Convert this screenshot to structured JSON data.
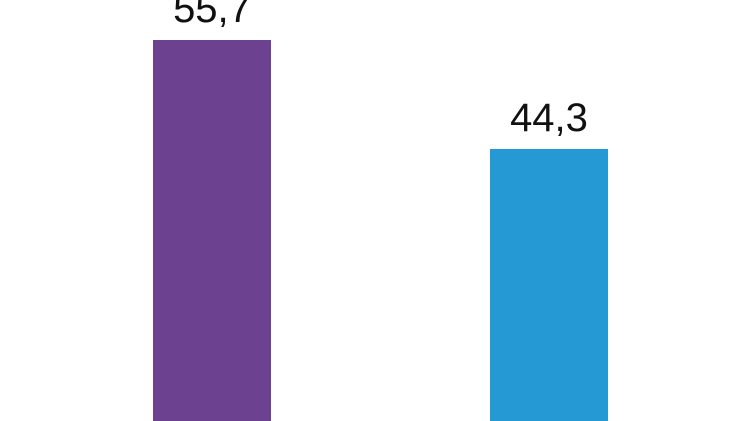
{
  "chart_data": {
    "type": "bar",
    "categories": [
      "",
      ""
    ],
    "values": [
      55.7,
      44.3
    ],
    "data_labels": [
      "55,7",
      "44,3"
    ],
    "colors": [
      "#6c418f",
      "#2499d4"
    ],
    "title": "",
    "xlabel": "",
    "ylabel": "",
    "ylim": [
      0,
      55.7
    ],
    "grid": false
  }
}
